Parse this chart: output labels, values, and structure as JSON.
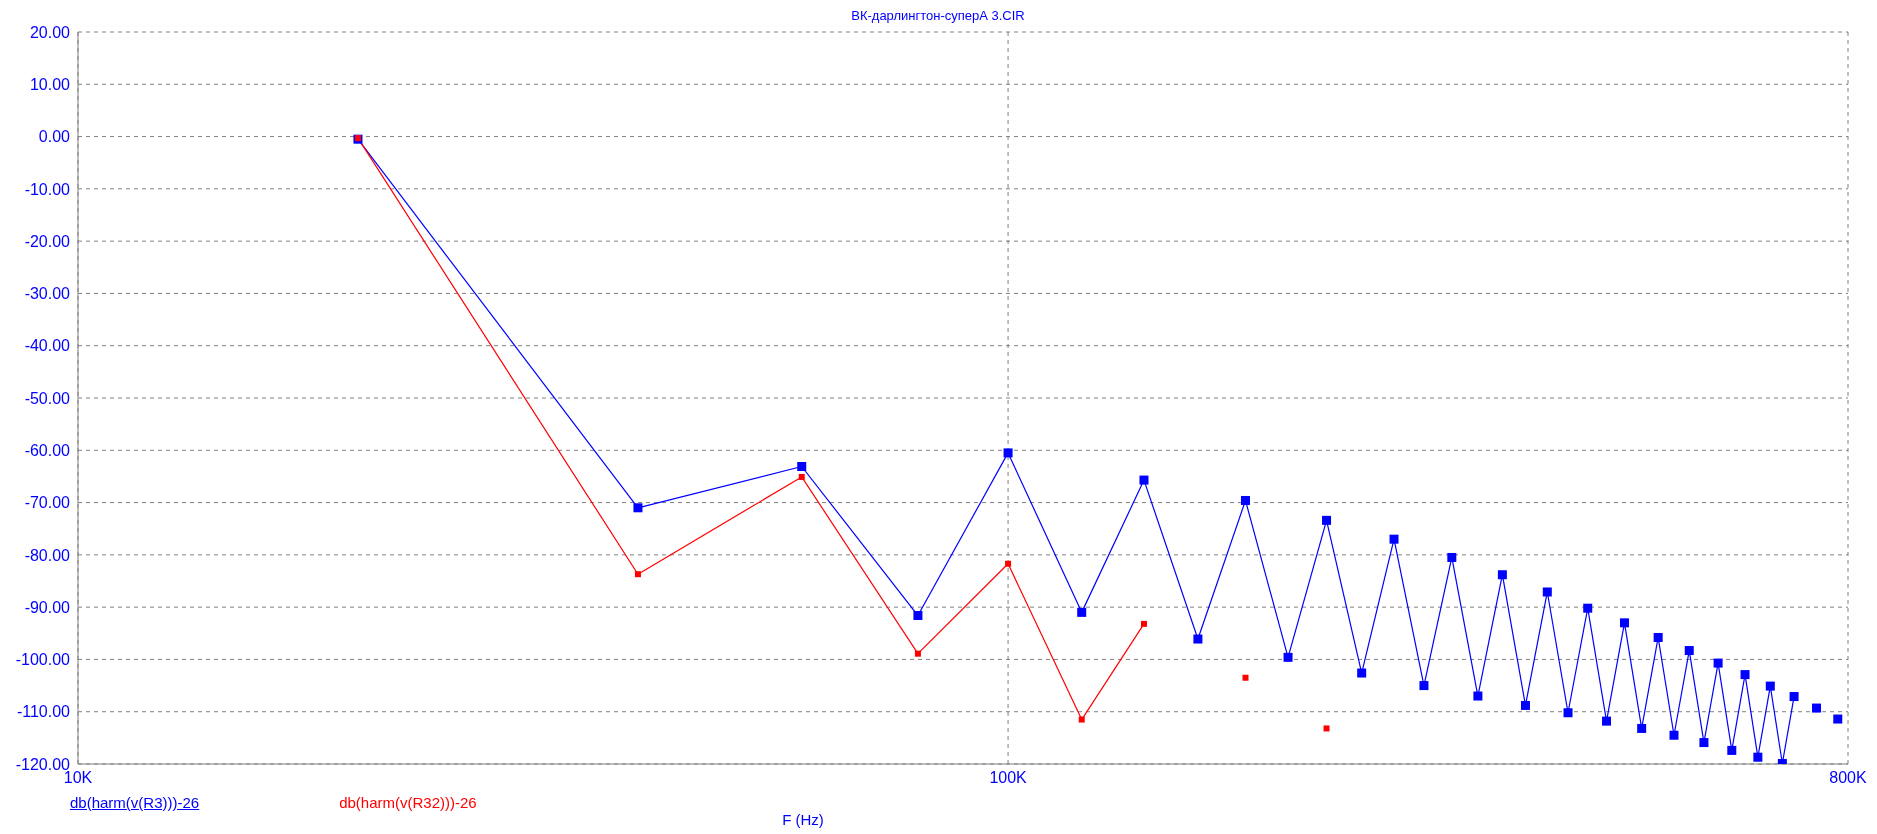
{
  "chart_data": {
    "type": "line",
    "title": "ВК-дарлингтон-суперА 3.CIR",
    "xlabel": "F (Hz)",
    "x": [
      20000,
      40000,
      60000,
      80000,
      100000,
      120000,
      140000,
      160000,
      180000,
      200000,
      220000,
      240000,
      260000,
      280000,
      300000,
      320000,
      340000,
      360000,
      380000,
      400000,
      420000,
      440000,
      460000,
      480000,
      500000,
      520000,
      540000,
      560000,
      580000,
      600000,
      620000,
      640000,
      660000,
      680000,
      700000,
      720000,
      740000,
      760000,
      780000
    ],
    "series": [
      {
        "name": "db(harm(v(R3)))-26",
        "color": "#0000ff",
        "values": [
          -0.5,
          -71,
          -63.1,
          -91.6,
          -60.5,
          -91,
          -65.7,
          -96.1,
          -69.6,
          -99.6,
          -73.4,
          -102.6,
          -77,
          -105,
          -80.5,
          -107,
          -83.8,
          -108.8,
          -87.1,
          -110.2,
          -90.2,
          -111.8,
          -93,
          -113.2,
          -95.8,
          -114.5,
          -98.3,
          -115.9,
          -100.7,
          -117.4,
          -102.9,
          -118.7,
          -105.1,
          -119.9,
          -107.1,
          null,
          -109.3,
          null,
          -111.4
        ]
      },
      {
        "name": "db(harm(v(R32)))-26",
        "color": "#ff0000",
        "values": [
          -0.3,
          -83.7,
          -65.1,
          -98.9,
          -81.7,
          -111.5,
          -93.2,
          null,
          -103.5,
          null,
          -113.2,
          null,
          null,
          null,
          null,
          null,
          null,
          null,
          null,
          null,
          null,
          null,
          null,
          null,
          null,
          null,
          null,
          null,
          null,
          null,
          null,
          null,
          null,
          null,
          null,
          null,
          null,
          null,
          null
        ]
      }
    ],
    "log": "x",
    "xlim": [
      10000,
      800000
    ],
    "xticks": [
      {
        "value": 10000,
        "label": "10K"
      },
      {
        "value": 100000,
        "label": "100K"
      },
      {
        "value": 800000,
        "label": "800K"
      }
    ],
    "ylim": [
      -120,
      20
    ],
    "yticks": [
      {
        "value": 20,
        "label": "20.00"
      },
      {
        "value": 10,
        "label": "10.00"
      },
      {
        "value": 0,
        "label": "0.00"
      },
      {
        "value": -10,
        "label": "-10.00"
      },
      {
        "value": -20,
        "label": "-20.00"
      },
      {
        "value": -30,
        "label": "-30.00"
      },
      {
        "value": -40,
        "label": "-40.00"
      },
      {
        "value": -50,
        "label": "-50.00"
      },
      {
        "value": -60,
        "label": "-60.00"
      },
      {
        "value": -70,
        "label": "-70.00"
      },
      {
        "value": -80,
        "label": "-80.00"
      },
      {
        "value": -90,
        "label": "-90.00"
      },
      {
        "value": -100,
        "label": "-100.00"
      },
      {
        "value": -110,
        "label": "-110.00"
      },
      {
        "value": -120,
        "label": "-120.00"
      }
    ],
    "grid": true,
    "legend": "bottom",
    "marker": "square",
    "line_style": "solid"
  }
}
